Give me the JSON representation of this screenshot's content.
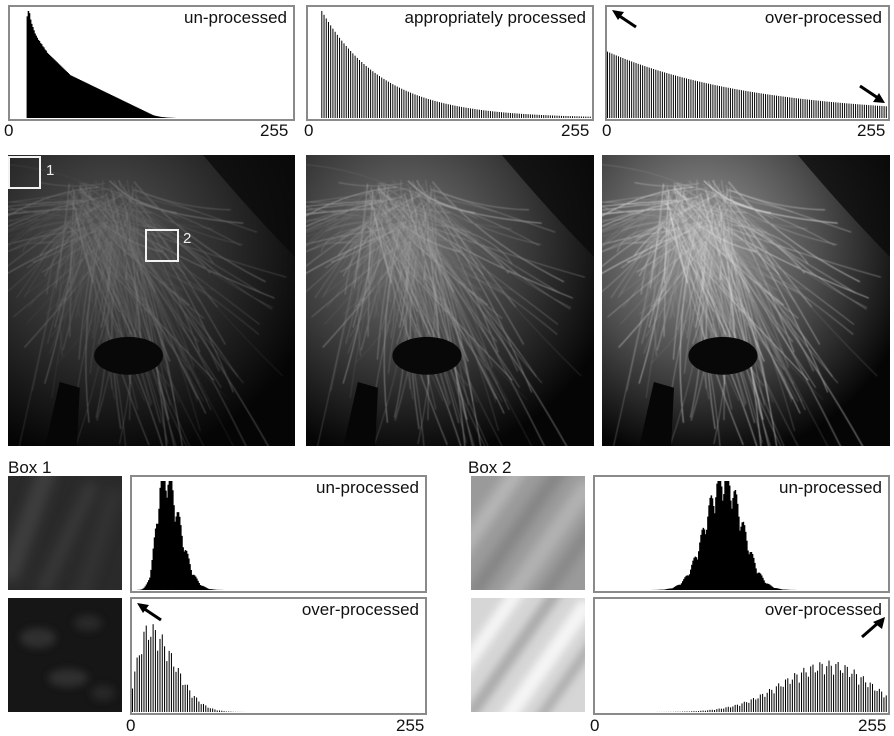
{
  "panels": {
    "unprocessed_title": "un-processed",
    "appropriate_title": "appropriately processed",
    "overprocessed_title": "over-processed"
  },
  "axis": {
    "min_label": "0",
    "max_label": "255"
  },
  "roi": {
    "box1_label": "1",
    "box2_label": "2"
  },
  "boxes": {
    "box1_title": "Box 1",
    "box2_title": "Box 2"
  },
  "icons": {
    "arrow": "arrow-icon"
  },
  "colors": {
    "histogram_fill": "#000000",
    "frame": "#8a8a8a"
  },
  "chart_data": [
    {
      "type": "bar",
      "title": "un-processed",
      "xlim": [
        0,
        255
      ],
      "x_tick_labels": [
        "0",
        "255"
      ],
      "profile": [
        0,
        0,
        0,
        0,
        0,
        0,
        0,
        0,
        0,
        0,
        0,
        0,
        0,
        0,
        0,
        95,
        100,
        98,
        92,
        88,
        85,
        82,
        79,
        77,
        75,
        73,
        72,
        70,
        69,
        67,
        66,
        64,
        63,
        61,
        60,
        59,
        58,
        57,
        56,
        55,
        54,
        53,
        52,
        51,
        50,
        49,
        48,
        47,
        46,
        45,
        44,
        43,
        42,
        41,
        40,
        39.5,
        39,
        38.5,
        38,
        37.5,
        37,
        36.5,
        36,
        35.5,
        35,
        34.5,
        34,
        33.5,
        33,
        32.5,
        32,
        31.5,
        31,
        30.5,
        30,
        29.5,
        29,
        28.5,
        28,
        27.5,
        27,
        26.5,
        26,
        25.5,
        25,
        24.5,
        24,
        23.5,
        23,
        22.5,
        22,
        21.5,
        21,
        20.5,
        20,
        19.5,
        19,
        18.5,
        18,
        17.5,
        17,
        16.5,
        16,
        15.5,
        15,
        14.5,
        14,
        13.5,
        13,
        12.5,
        12,
        11.5,
        11,
        10.5,
        10,
        9.5,
        9,
        8.5,
        8,
        7.5,
        7,
        6.5,
        6,
        5.5,
        5,
        4.5,
        4,
        3.5,
        3,
        2.6,
        2.3,
        2,
        1.8,
        1.6,
        1.4,
        1.2,
        1,
        0.9,
        0.8,
        0.7,
        0.6,
        0.5,
        0.4,
        0.35,
        0.3,
        0.25,
        0.2,
        0.15,
        0.1,
        0.05,
        0,
        0,
        0,
        0,
        0,
        0,
        0,
        0,
        0,
        0,
        0,
        0,
        0,
        0,
        0,
        0,
        0,
        0,
        0,
        0,
        0,
        0,
        0,
        0,
        0,
        0,
        0,
        0,
        0,
        0,
        0,
        0,
        0,
        0,
        0,
        0,
        0,
        0,
        0,
        0,
        0,
        0,
        0,
        0,
        0,
        0,
        0,
        0,
        0,
        0,
        0,
        0,
        0,
        0,
        0,
        0,
        0,
        0,
        0,
        0,
        0,
        0,
        0,
        0,
        0,
        0,
        0,
        0,
        0,
        0,
        0,
        0,
        0,
        0,
        0,
        0,
        0,
        0,
        0,
        0,
        0,
        0,
        0,
        0,
        0,
        0,
        0,
        0,
        0,
        0,
        0,
        0,
        0,
        0,
        0,
        0,
        0,
        0,
        0,
        0,
        0,
        0,
        0,
        0,
        0,
        0
      ],
      "bar_step": 1
    },
    {
      "type": "bar",
      "title": "appropriately processed",
      "xlim": [
        0,
        255
      ],
      "x_tick_labels": [
        "0",
        "255"
      ],
      "bar_step": 2,
      "start_value": 12,
      "curve": "exponential-decay",
      "peak": 100,
      "decay": 0.018
    },
    {
      "type": "bar",
      "title": "over-processed",
      "xlim": [
        0,
        255
      ],
      "x_tick_labels": [
        "0",
        "255"
      ],
      "bar_step": 2,
      "start_value": 0,
      "curve": "slow-decay",
      "peak": 60,
      "decay": 0.0075,
      "annotations": [
        "arrow at 0",
        "arrow at 255"
      ]
    },
    {
      "type": "bar",
      "title": "un-processed",
      "group": "Box 1",
      "xlim": [
        0,
        255
      ],
      "x_tick_labels": [
        "0",
        "255"
      ],
      "bar_step": 1,
      "center": 27,
      "spread": 6,
      "peak": 100,
      "skew": "right"
    },
    {
      "type": "bar",
      "title": "over-processed",
      "group": "Box 1",
      "xlim": [
        0,
        255
      ],
      "x_tick_labels": [
        "0",
        "255"
      ],
      "bar_step": 2,
      "center": 14,
      "spread": 10,
      "peak": 70,
      "skew": "right",
      "annotations": [
        "arrow at 0"
      ]
    },
    {
      "type": "bar",
      "title": "un-processed",
      "group": "Box 2",
      "xlim": [
        0,
        255
      ],
      "x_tick_labels": [
        "0",
        "255"
      ],
      "bar_step": 1,
      "center": 112,
      "spread": 16,
      "peak": 95,
      "skew": "none"
    },
    {
      "type": "bar",
      "title": "over-processed",
      "group": "Box 2",
      "xlim": [
        0,
        255
      ],
      "x_tick_labels": [
        "0",
        "255"
      ],
      "bar_step": 2,
      "center": 205,
      "spread": 38,
      "peak": 40,
      "skew": "left",
      "annotations": [
        "arrow at 255"
      ]
    }
  ]
}
